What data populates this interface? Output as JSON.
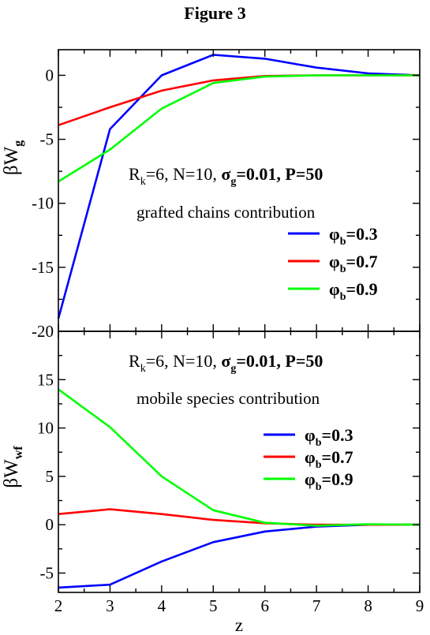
{
  "figure_title": "Figure 3",
  "chart_data": [
    {
      "type": "line",
      "panel": "top",
      "ylabel": "βW",
      "ylabel_sub": "g",
      "ylim": [
        -20,
        2
      ],
      "yticks": [
        0,
        -5,
        -10,
        -15,
        -20
      ],
      "xlim": [
        2,
        9
      ],
      "xticks": [
        2,
        3,
        4,
        5,
        6,
        7,
        8,
        9
      ],
      "show_xtick_labels": false,
      "params": {
        "pre": "R",
        "pre_sub": "k",
        "mid": "=6, N=10, ",
        "sigma": "σ",
        "sigma_sub": "g",
        "post": "=0.01, P=50"
      },
      "subtitle": "grafted chains contribution",
      "legend_position": "center-right",
      "series": [
        {
          "name": "=0.3",
          "phi": "φ",
          "phi_sub": "b",
          "color": "#0000ff",
          "x": [
            2,
            3,
            4,
            5,
            6,
            7,
            8,
            9
          ],
          "values": [
            -19.0,
            -4.2,
            0.0,
            1.6,
            1.3,
            0.6,
            0.15,
            0.0
          ]
        },
        {
          "name": "=0.7",
          "phi": "φ",
          "phi_sub": "b",
          "color": "#ff0000",
          "x": [
            2,
            3,
            4,
            5,
            6,
            7,
            8,
            9
          ],
          "values": [
            -3.9,
            -2.5,
            -1.2,
            -0.4,
            -0.05,
            0.0,
            0.0,
            0.0
          ]
        },
        {
          "name": "=0.9",
          "phi": "φ",
          "phi_sub": "b",
          "color": "#00ff00",
          "x": [
            2,
            3,
            4,
            5,
            6,
            7,
            8,
            9
          ],
          "values": [
            -8.3,
            -5.8,
            -2.6,
            -0.6,
            -0.1,
            0.0,
            0.0,
            0.0
          ]
        }
      ]
    },
    {
      "type": "line",
      "panel": "bottom",
      "ylabel": "βW",
      "ylabel_sub": "wf",
      "xlabel": "z",
      "ylim": [
        -7,
        20
      ],
      "yticks": [
        15,
        10,
        5,
        0,
        -5
      ],
      "xlim": [
        2,
        9
      ],
      "xticks": [
        2,
        3,
        4,
        5,
        6,
        7,
        8,
        9
      ],
      "show_xtick_labels": true,
      "params": {
        "pre": "R",
        "pre_sub": "k",
        "mid": "=6, N=10, ",
        "sigma": "σ",
        "sigma_sub": "g",
        "post": "=0.01, P=50"
      },
      "subtitle": "mobile species contribution",
      "legend_position": "center-right",
      "series": [
        {
          "name": "=0.3",
          "phi": "φ",
          "phi_sub": "b",
          "color": "#0000ff",
          "x": [
            2,
            3,
            4,
            5,
            6,
            7,
            8,
            9
          ],
          "values": [
            -6.5,
            -6.2,
            -3.8,
            -1.8,
            -0.7,
            -0.2,
            0.0,
            0.0
          ]
        },
        {
          "name": "=0.7",
          "phi": "φ",
          "phi_sub": "b",
          "color": "#ff0000",
          "x": [
            2,
            3,
            4,
            5,
            6,
            7,
            8,
            9
          ],
          "values": [
            1.1,
            1.6,
            1.1,
            0.5,
            0.15,
            0.0,
            0.0,
            0.0
          ]
        },
        {
          "name": "=0.9",
          "phi": "φ",
          "phi_sub": "b",
          "color": "#00ff00",
          "x": [
            2,
            3,
            4,
            5,
            6,
            7,
            8,
            9
          ],
          "values": [
            14.0,
            10.1,
            5.0,
            1.5,
            0.2,
            -0.1,
            0.05,
            0.0
          ]
        }
      ]
    }
  ]
}
